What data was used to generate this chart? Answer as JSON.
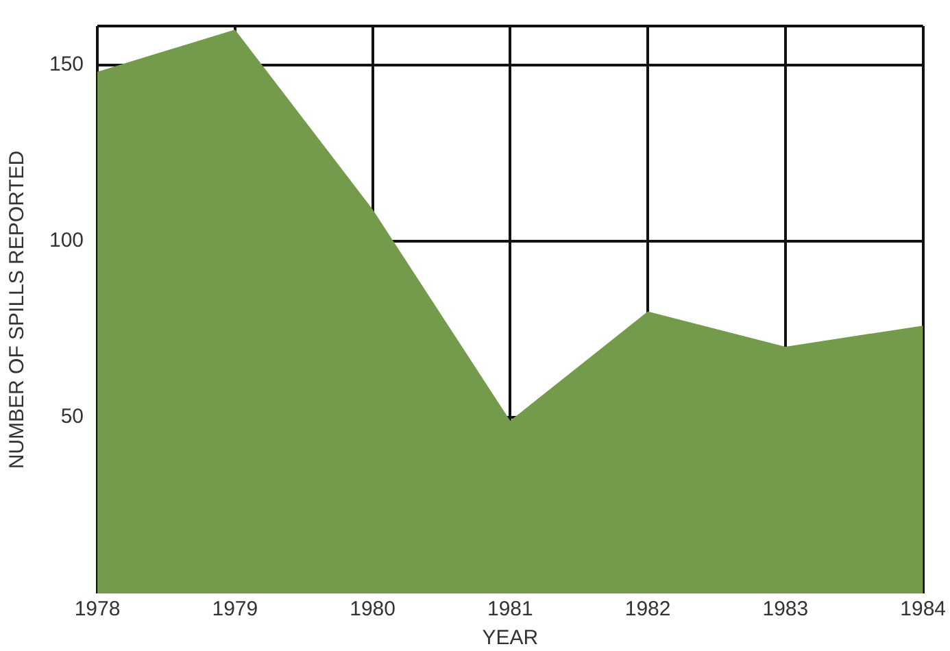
{
  "chart_data": {
    "type": "area",
    "xlabel": "YEAR",
    "ylabel": "NUMBER OF SPILLS REPORTED",
    "x": [
      1978,
      1979,
      1980,
      1981,
      1982,
      1983,
      1984
    ],
    "values": [
      148,
      160,
      109,
      49,
      80,
      70,
      76
    ],
    "color": "#739b4b",
    "xlim": [
      1978,
      1984
    ],
    "xticks": [
      1978,
      1979,
      1980,
      1981,
      1982,
      1983,
      1984
    ],
    "ylim": [
      0,
      161
    ],
    "yticks": [
      50,
      100,
      150,
      {
        "value": 161,
        "label": null
      }
    ],
    "grid": true
  }
}
